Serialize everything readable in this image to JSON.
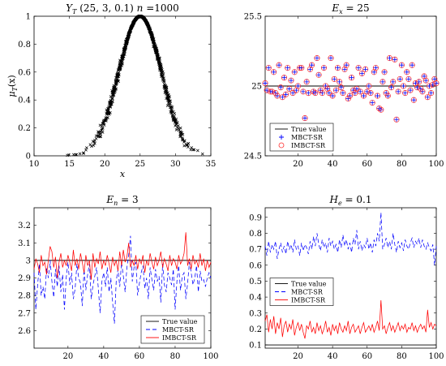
{
  "chart_data": [
    {
      "id": "p1",
      "type": "scatter",
      "title": "Y_T (25, 3, 0.1)   n =1000",
      "title_parts": {
        "lead": "Y",
        "sub": "T",
        "rest": " (25, 3, 0.1)   ",
        "n": "n",
        "nval": " =1000"
      },
      "xlabel": "x",
      "ylabel": "μ_T(x)",
      "ylabel_parts": {
        "main": "μ",
        "sub": "T",
        "rest": "(x)"
      },
      "xlim": [
        10,
        35
      ],
      "ylim": [
        0,
        1
      ],
      "xticks": [
        "10",
        "15",
        "20",
        "25",
        "30",
        "35"
      ],
      "yticks": [
        "0",
        "0.2",
        "0.4",
        "0.6",
        "0.8",
        "1"
      ],
      "marker": "x",
      "model": {
        "ex": 25,
        "en": 3,
        "he": 0.1,
        "n": 1000
      },
      "color": "#000000"
    },
    {
      "id": "p2",
      "type": "scatter",
      "title": "E_x = 25",
      "title_parts": {
        "lead": "E",
        "sub": "x",
        "rest": " = 25"
      },
      "xlim": [
        1,
        100
      ],
      "ylim": [
        24.5,
        25.5
      ],
      "xticks": [
        "20",
        "40",
        "60",
        "80",
        "100"
      ],
      "yticks": [
        "24.5",
        "25",
        "25.5"
      ],
      "true_value": 25,
      "legend": [
        "True value",
        "MBCT-SR",
        "IMBCT-SR"
      ],
      "legend_position": "bottom-left",
      "series": [
        {
          "name": "MBCT-SR",
          "marker": "+",
          "color": "#0000ff",
          "values": [
            25.02,
            24.97,
            25.13,
            24.96,
            24.96,
            25.1,
            24.95,
            24.93,
            25.15,
            24.99,
            24.92,
            25.06,
            24.94,
            25.13,
            24.98,
            25.04,
            24.95,
            25.1,
            24.97,
            25.0,
            25.13,
            25.13,
            24.96,
            24.77,
            25.03,
            24.95,
            25.12,
            25.15,
            24.96,
            24.95,
            25.2,
            25.08,
            24.97,
            24.95,
            25.13,
            25.0,
            24.98,
            24.95,
            25.2,
            24.93,
            25.05,
            24.97,
            25.13,
            25.03,
            24.99,
            24.95,
            25.12,
            25.15,
            24.91,
            24.93,
            25.06,
            24.97,
            24.95,
            24.98,
            25.13,
            24.96,
            25.09,
            24.93,
            25.12,
            24.96,
            25.0,
            24.95,
            24.88,
            25.1,
            25.13,
            24.93,
            24.84,
            24.83,
            25.03,
            25.1,
            24.95,
            24.93,
            25.2,
            24.99,
            25.03,
            25.19,
            24.76,
            24.96,
            25.05,
            25.15,
            25.0,
            24.95,
            25.1,
            25.05,
            24.97,
            25.15,
            24.9,
            25.02,
            24.99,
            25.03,
            24.98,
            24.96,
            25.07,
            25.04,
            24.92,
            25.0,
            24.95,
            25.01,
            25.05,
            25.02
          ]
        },
        {
          "name": "IMBCT-SR",
          "marker": "o",
          "color": "#ff3030",
          "values": [
            25.02,
            24.97,
            25.13,
            24.96,
            24.96,
            25.1,
            24.95,
            24.93,
            25.15,
            24.99,
            24.92,
            25.06,
            24.94,
            25.13,
            24.98,
            25.04,
            24.95,
            25.1,
            24.97,
            25.0,
            25.13,
            25.13,
            24.96,
            24.77,
            25.03,
            24.95,
            25.12,
            25.15,
            24.96,
            24.95,
            25.2,
            25.08,
            24.97,
            24.95,
            25.13,
            25.0,
            24.98,
            24.95,
            25.2,
            24.93,
            25.05,
            24.97,
            25.13,
            25.03,
            24.99,
            24.95,
            25.12,
            25.15,
            24.91,
            24.93,
            25.06,
            24.97,
            24.95,
            24.98,
            25.13,
            24.96,
            25.09,
            24.93,
            25.12,
            24.96,
            25.0,
            24.95,
            24.88,
            25.1,
            25.13,
            24.93,
            24.84,
            24.83,
            25.03,
            25.1,
            24.95,
            24.93,
            25.2,
            24.99,
            25.03,
            25.19,
            24.76,
            24.96,
            25.05,
            25.15,
            25.0,
            24.95,
            25.1,
            25.05,
            24.97,
            25.15,
            24.9,
            25.02,
            24.99,
            25.03,
            24.98,
            24.96,
            25.07,
            25.04,
            24.92,
            25.0,
            24.95,
            25.01,
            25.05,
            25.02
          ]
        }
      ]
    },
    {
      "id": "p3",
      "type": "line",
      "title": "E_n = 3",
      "title_parts": {
        "lead": "E",
        "sub": "n",
        "rest": " = 3"
      },
      "xlim": [
        1,
        100
      ],
      "ylim": [
        2.5,
        3.3
      ],
      "xticks": [
        "20",
        "40",
        "60",
        "80",
        "100"
      ],
      "yticks": [
        "2.6",
        "2.7",
        "2.8",
        "2.9",
        "3",
        "3.1",
        "3.2"
      ],
      "true_value": 3,
      "legend": [
        "True value",
        "MBCT-SR",
        "IMBCT-SR"
      ],
      "legend_position": "bottom-right",
      "series": [
        {
          "name": "MBCT-SR",
          "style": "dashed",
          "color": "#0000ff",
          "values": [
            2.93,
            2.72,
            2.86,
            2.98,
            2.8,
            2.85,
            2.78,
            2.96,
            2.9,
            3.0,
            2.88,
            2.79,
            2.95,
            2.85,
            2.97,
            2.82,
            2.92,
            2.72,
            2.9,
            2.99,
            2.86,
            2.93,
            2.78,
            2.84,
            2.98,
            2.9,
            2.87,
            2.74,
            2.95,
            2.83,
            2.92,
            2.98,
            2.78,
            2.86,
            2.91,
            2.96,
            2.84,
            2.7,
            2.88,
            2.93,
            2.85,
            2.96,
            2.82,
            2.9,
            2.76,
            2.64,
            2.88,
            2.95,
            2.85,
            2.99,
            2.91,
            2.82,
            2.96,
            3.03,
            3.14,
            2.88,
            2.96,
            2.99,
            2.8,
            2.87,
            2.93,
            2.97,
            2.84,
            2.9,
            2.78,
            2.96,
            2.89,
            2.83,
            2.95,
            2.88,
            2.91,
            2.76,
            2.98,
            2.86,
            2.82,
            2.93,
            2.9,
            2.86,
            2.95,
            2.72,
            2.88,
            2.97,
            2.83,
            2.91,
            2.93,
            2.78,
            2.87,
            2.99,
            2.93,
            2.86,
            2.9,
            2.97,
            2.82,
            2.94,
            2.88,
            2.89,
            2.85,
            2.9,
            2.93,
            2.9
          ]
        },
        {
          "name": "IMBCT-SR",
          "style": "solid",
          "color": "#ff0000",
          "values": [
            2.95,
            3.01,
            2.98,
            2.93,
            3.03,
            2.97,
            2.99,
            2.92,
            3.0,
            3.08,
            3.05,
            2.96,
            3.02,
            2.9,
            2.99,
            3.04,
            2.96,
            3.0,
            2.97,
            3.03,
            2.99,
            2.94,
            3.06,
            2.97,
            3.01,
            2.95,
            3.04,
            2.99,
            2.93,
            3.03,
            2.97,
            3.0,
            2.89,
            3.04,
            2.96,
            3.01,
            2.98,
            3.05,
            2.95,
            3.0,
            2.97,
            3.03,
            2.98,
            2.93,
            3.02,
            2.97,
            3.0,
            2.94,
            3.05,
            2.97,
            3.06,
            2.99,
            3.02,
            3.1,
            2.96,
            3.0,
            2.97,
            3.03,
            2.95,
            3.01,
            2.98,
            3.03,
            2.93,
            3.0,
            2.97,
            3.04,
            2.99,
            2.95,
            3.02,
            2.97,
            3.0,
            3.05,
            2.96,
            3.01,
            2.98,
            2.94,
            3.03,
            2.97,
            3.01,
            2.99,
            2.95,
            3.03,
            2.98,
            3.0,
            3.04,
            3.16,
            2.97,
            3.01,
            2.95,
            3.03,
            2.98,
            3.0,
            2.96,
            3.04,
            2.97,
            3.01,
            2.94,
            3.0,
            2.96,
            2.99
          ]
        }
      ]
    },
    {
      "id": "p4",
      "type": "line",
      "title": "H_e = 0.1",
      "title_parts": {
        "lead": "H",
        "sub": "e",
        "rest": " = 0.1"
      },
      "xlim": [
        1,
        100
      ],
      "ylim": [
        0.08,
        0.96
      ],
      "xticks": [
        "20",
        "40",
        "60",
        "80",
        "100"
      ],
      "yticks": [
        "0.1",
        "0.2",
        "0.3",
        "0.4",
        "0.5",
        "0.6",
        "0.7",
        "0.8",
        "0.9"
      ],
      "true_value": 0.1,
      "legend": [
        "True value",
        "MBCT-SR",
        "IMBCT-SR"
      ],
      "legend_position": "left-middle",
      "series": [
        {
          "name": "MBCT-SR",
          "style": "dashed",
          "color": "#0000ff",
          "values": [
            0.72,
            0.66,
            0.75,
            0.68,
            0.73,
            0.7,
            0.75,
            0.64,
            0.7,
            0.74,
            0.68,
            0.72,
            0.67,
            0.75,
            0.7,
            0.73,
            0.68,
            0.76,
            0.7,
            0.72,
            0.66,
            0.74,
            0.69,
            0.73,
            0.71,
            0.67,
            0.75,
            0.7,
            0.78,
            0.72,
            0.8,
            0.73,
            0.69,
            0.76,
            0.71,
            0.74,
            0.68,
            0.77,
            0.72,
            0.75,
            0.7,
            0.73,
            0.68,
            0.76,
            0.71,
            0.79,
            0.72,
            0.76,
            0.7,
            0.74,
            0.68,
            0.77,
            0.73,
            0.82,
            0.7,
            0.75,
            0.69,
            0.73,
            0.71,
            0.77,
            0.7,
            0.74,
            0.68,
            0.76,
            0.72,
            0.8,
            0.75,
            0.93,
            0.7,
            0.73,
            0.77,
            0.71,
            0.75,
            0.7,
            0.8,
            0.73,
            0.68,
            0.75,
            0.71,
            0.74,
            0.69,
            0.76,
            0.72,
            0.7,
            0.74,
            0.77,
            0.71,
            0.75,
            0.73,
            0.77,
            0.71,
            0.76,
            0.72,
            0.7,
            0.74,
            0.71,
            0.69,
            0.73,
            0.6,
            0.72
          ]
        },
        {
          "name": "IMBCT-SR",
          "style": "solid",
          "color": "#ff0000",
          "values": [
            0.25,
            0.29,
            0.18,
            0.26,
            0.2,
            0.28,
            0.17,
            0.24,
            0.2,
            0.27,
            0.15,
            0.22,
            0.25,
            0.18,
            0.23,
            0.2,
            0.26,
            0.16,
            0.21,
            0.24,
            0.19,
            0.23,
            0.18,
            0.14,
            0.22,
            0.2,
            0.25,
            0.18,
            0.21,
            0.17,
            0.24,
            0.19,
            0.22,
            0.17,
            0.2,
            0.25,
            0.18,
            0.21,
            0.16,
            0.23,
            0.19,
            0.22,
            0.17,
            0.24,
            0.2,
            0.18,
            0.22,
            0.19,
            0.25,
            0.17,
            0.21,
            0.23,
            0.18,
            0.2,
            0.22,
            0.17,
            0.21,
            0.24,
            0.18,
            0.2,
            0.22,
            0.19,
            0.23,
            0.18,
            0.21,
            0.25,
            0.19,
            0.38,
            0.2,
            0.22,
            0.17,
            0.21,
            0.24,
            0.19,
            0.22,
            0.18,
            0.21,
            0.24,
            0.19,
            0.22,
            0.2,
            0.23,
            0.18,
            0.21,
            0.2,
            0.24,
            0.19,
            0.22,
            0.18,
            0.21,
            0.23,
            0.2,
            0.22,
            0.18,
            0.32,
            0.21,
            0.24,
            0.2,
            0.23,
            0.22
          ]
        }
      ]
    }
  ]
}
